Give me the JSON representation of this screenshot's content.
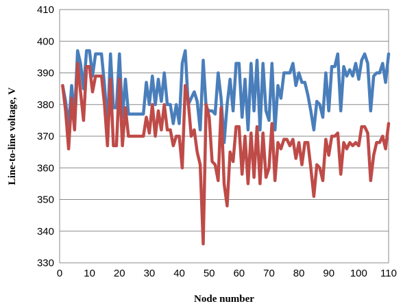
{
  "chart_data": {
    "type": "line",
    "xlabel": "Node number",
    "ylabel": "Line-to-line voltage, V",
    "xlim": [
      0,
      110
    ],
    "ylim": [
      330,
      410
    ],
    "xticks": [
      0,
      10,
      20,
      30,
      40,
      50,
      60,
      70,
      80,
      90,
      100,
      110
    ],
    "yticks": [
      330,
      340,
      350,
      360,
      370,
      380,
      390,
      400,
      410
    ],
    "grid": "horizontal",
    "legend": "none",
    "series": [
      {
        "color": "#4a7ebb",
        "x": [
          1,
          2,
          3,
          4,
          5,
          6,
          7,
          8,
          9,
          10,
          11,
          12,
          13,
          14,
          15,
          16,
          17,
          18,
          19,
          20,
          21,
          22,
          23,
          24,
          25,
          26,
          27,
          28,
          29,
          30,
          31,
          32,
          33,
          34,
          35,
          36,
          37,
          38,
          39,
          40,
          41,
          42,
          43,
          44,
          45,
          46,
          47,
          48,
          49,
          50,
          51,
          52,
          53,
          54,
          55,
          56,
          57,
          58,
          59,
          60,
          61,
          62,
          63,
          64,
          65,
          66,
          67,
          68,
          69,
          70,
          71,
          72,
          73,
          74,
          75,
          76,
          77,
          78,
          79,
          80,
          81,
          82,
          83,
          84,
          85,
          86,
          87,
          88,
          89,
          90,
          91,
          92,
          93,
          94,
          95,
          96,
          97,
          98,
          99,
          100,
          101,
          102,
          103,
          104,
          105,
          106,
          107,
          108,
          109,
          110
        ],
        "values": [
          386,
          381,
          373,
          386,
          376,
          397,
          393,
          385,
          397,
          397,
          389,
          396,
          396,
          396,
          386,
          373,
          396,
          379,
          379,
          396,
          376,
          388,
          377,
          377,
          377,
          377,
          377,
          377,
          387,
          380,
          389,
          380,
          388,
          381,
          390,
          380,
          380,
          374,
          380,
          374,
          393,
          397,
          380,
          382,
          384,
          381,
          372,
          394,
          379,
          378,
          378,
          377,
          390,
          382,
          368,
          380,
          388,
          378,
          393,
          393,
          376,
          388,
          372,
          393,
          378,
          394,
          372,
          393,
          378,
          375,
          393,
          372,
          386,
          382,
          390,
          390,
          390,
          393,
          386,
          390,
          387,
          387,
          383,
          378,
          372,
          381,
          380,
          376,
          390,
          378,
          392,
          392,
          396,
          378,
          392,
          389,
          391,
          389,
          393,
          388,
          394,
          396,
          393,
          378,
          389,
          390,
          390,
          393,
          387,
          396
        ]
      },
      {
        "color": "#be4b48",
        "x": [
          1,
          2,
          3,
          4,
          5,
          6,
          7,
          8,
          9,
          10,
          11,
          12,
          13,
          14,
          15,
          16,
          17,
          18,
          19,
          20,
          21,
          22,
          23,
          24,
          25,
          26,
          27,
          28,
          29,
          30,
          31,
          32,
          33,
          34,
          35,
          36,
          37,
          38,
          39,
          40,
          41,
          42,
          43,
          44,
          45,
          46,
          47,
          48,
          49,
          50,
          51,
          52,
          53,
          54,
          55,
          56,
          57,
          58,
          59,
          60,
          61,
          62,
          63,
          64,
          65,
          66,
          67,
          68,
          69,
          70,
          71,
          72,
          73,
          74,
          75,
          76,
          77,
          78,
          79,
          80,
          81,
          82,
          83,
          84,
          85,
          86,
          87,
          88,
          89,
          90,
          91,
          92,
          93,
          94,
          95,
          96,
          97,
          98,
          99,
          100,
          101,
          102,
          103,
          104,
          105,
          106,
          107,
          108,
          109,
          110
        ],
        "values": [
          386,
          378,
          366,
          382,
          372,
          393,
          384,
          375,
          392,
          392,
          384,
          389,
          389,
          389,
          380,
          367,
          388,
          367,
          367,
          388,
          367,
          379,
          370,
          370,
          370,
          370,
          370,
          370,
          376,
          371,
          380,
          370,
          378,
          372,
          380,
          372,
          372,
          367,
          370,
          370,
          360,
          386,
          381,
          370,
          372,
          365,
          361,
          336,
          380,
          376,
          362,
          361,
          356,
          379,
          355,
          348,
          365,
          362,
          373,
          373,
          358,
          370,
          355,
          371,
          357,
          373,
          355,
          371,
          357,
          360,
          374,
          356,
          368,
          366,
          369,
          369,
          367,
          369,
          363,
          368,
          361,
          368,
          368,
          360,
          351,
          361,
          360,
          356,
          369,
          364,
          370,
          370,
          371,
          358,
          368,
          366,
          368,
          367,
          368,
          367,
          373,
          373,
          371,
          356,
          364,
          368,
          368,
          370,
          366,
          374
        ]
      }
    ]
  }
}
